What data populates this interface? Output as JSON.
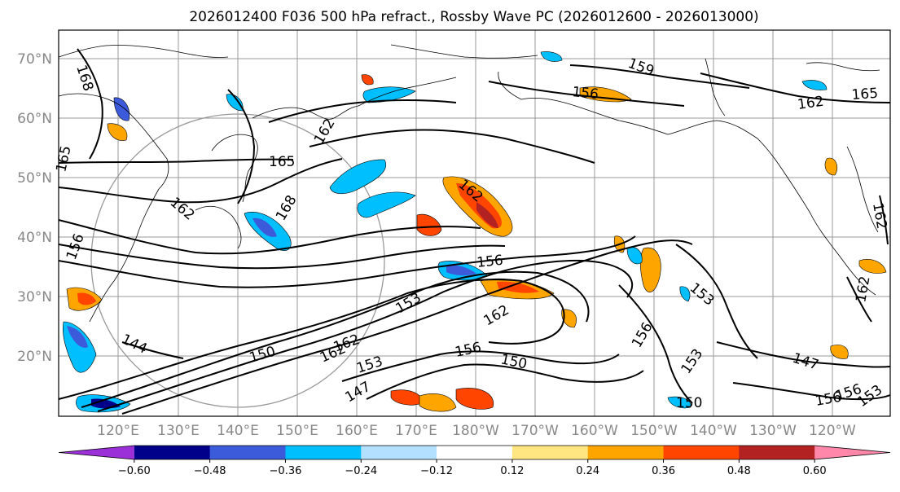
{
  "title": "2026012400 F036 500 hPa refract., Rossby Wave PC (2026012600 - 2026013000)",
  "lat_labels": [
    "70°N",
    "60°N",
    "50°N",
    "40°N",
    "30°N",
    "20°N"
  ],
  "lon_labels": [
    "120°E",
    "130°E",
    "140°E",
    "150°E",
    "160°E",
    "170°E",
    "180°W",
    "170°W",
    "160°W",
    "150°W",
    "140°W",
    "130°W",
    "120°W"
  ],
  "colorbar": {
    "colors": [
      "#9b30d9",
      "#00008b",
      "#3b5bdb",
      "#00bfff",
      "#b3e0ff",
      "#ffffff",
      "#ffe680",
      "#ffa500",
      "#ff4500",
      "#b22222",
      "#ff88aa"
    ],
    "tick_labels": [
      "−0.60",
      "−0.48",
      "−0.36",
      "−0.24",
      "−0.12",
      "0.12",
      "0.24",
      "0.36",
      "0.48",
      "0.60"
    ]
  },
  "contour_labels": [
    "168",
    "159",
    "156",
    "162",
    "165",
    "165",
    "162",
    "165",
    "162",
    "168",
    "162",
    "162",
    "156",
    "156",
    "153",
    "153",
    "162",
    "156",
    "150",
    "162",
    "153",
    "147",
    "144",
    "150",
    "156",
    "153",
    "147",
    "156",
    "153",
    "150",
    "162",
    "156",
    "162"
  ]
}
